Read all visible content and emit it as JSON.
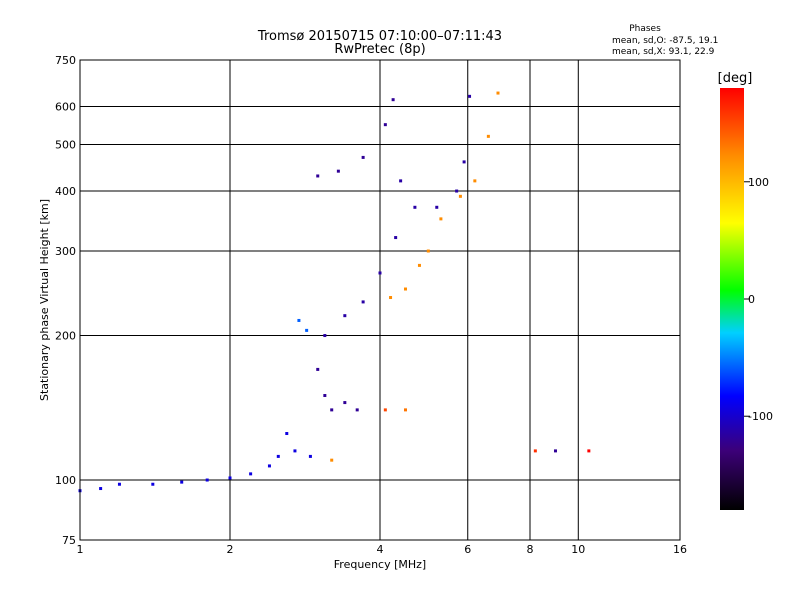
{
  "title_line1": "Tromsø 20150715 07:10:00–07:11:43",
  "title_line2": "RwPretec (8p)",
  "stats": {
    "header": "Phases",
    "line_o": "mean, sd,O:  -87.5, 19.1",
    "line_x": "mean, sd,X:  93.1, 22.9"
  },
  "chart_data": {
    "type": "scatter",
    "xlabel": "Frequency [MHz]",
    "ylabel": "Stationary phase Virtual Height [km]",
    "x_scale": "log",
    "y_scale": "log",
    "xlim": [
      1,
      16
    ],
    "ylim": [
      75,
      750
    ],
    "x_ticks": [
      1,
      2,
      4,
      6,
      8,
      10,
      16
    ],
    "x_tick_labels": [
      "1",
      "2",
      "4",
      "6",
      "8",
      "10",
      "16"
    ],
    "y_ticks": [
      75,
      100,
      200,
      300,
      400,
      500,
      600,
      750
    ],
    "y_tick_labels": [
      "75",
      "100",
      "200",
      "300",
      "400",
      "500",
      "600",
      "750"
    ],
    "grid": true,
    "colorbar": {
      "label": "[deg]",
      "range": [
        -180,
        180
      ],
      "ticks": [
        100,
        0,
        -100
      ],
      "tick_labels": [
        "100",
        "0",
        "-100"
      ]
    },
    "series": [
      {
        "values": [
          [
            1.0,
            95,
            -95
          ],
          [
            1.1,
            96,
            -95
          ],
          [
            1.2,
            98,
            -95
          ],
          [
            1.4,
            98,
            -95
          ],
          [
            1.6,
            99,
            -95
          ],
          [
            1.8,
            100,
            -95
          ],
          [
            2.0,
            101,
            -95
          ],
          [
            2.2,
            103,
            -95
          ],
          [
            2.4,
            107,
            -95
          ],
          [
            2.5,
            112,
            -95
          ],
          [
            2.6,
            125,
            -95
          ],
          [
            2.7,
            115,
            -95
          ],
          [
            2.9,
            112,
            -95
          ]
        ]
      },
      {
        "values": [
          [
            2.75,
            215,
            -60
          ],
          [
            2.85,
            205,
            -60
          ],
          [
            3.0,
            170,
            -120
          ],
          [
            3.1,
            150,
            -120
          ],
          [
            3.2,
            140,
            -120
          ],
          [
            3.4,
            145,
            -120
          ],
          [
            3.6,
            140,
            -120
          ]
        ]
      },
      {
        "values": [
          [
            3.1,
            200,
            -115
          ],
          [
            3.4,
            220,
            -115
          ],
          [
            3.7,
            235,
            -115
          ],
          [
            4.0,
            270,
            -115
          ],
          [
            4.3,
            320,
            -115
          ],
          [
            4.4,
            420,
            -115
          ],
          [
            4.7,
            370,
            -115
          ],
          [
            5.2,
            370,
            -115
          ],
          [
            5.7,
            400,
            -115
          ],
          [
            5.9,
            460,
            -115
          ],
          [
            6.05,
            630,
            -115
          ]
        ]
      },
      {
        "values": [
          [
            3.0,
            430,
            -120
          ],
          [
            3.3,
            440,
            -120
          ],
          [
            3.7,
            470,
            -120
          ],
          [
            4.1,
            550,
            -120
          ],
          [
            4.25,
            620,
            -120
          ]
        ]
      },
      {
        "values": [
          [
            4.2,
            240,
            120
          ],
          [
            4.5,
            250,
            120
          ],
          [
            4.8,
            280,
            120
          ],
          [
            5.0,
            300,
            120
          ],
          [
            5.3,
            350,
            120
          ],
          [
            5.8,
            390,
            120
          ],
          [
            6.2,
            420,
            120
          ],
          [
            6.6,
            520,
            120
          ],
          [
            6.9,
            640,
            120
          ]
        ]
      },
      {
        "values": [
          [
            3.2,
            110,
            120
          ],
          [
            4.1,
            140,
            150
          ],
          [
            4.5,
            140,
            130
          ],
          [
            8.2,
            115,
            160
          ],
          [
            9.0,
            115,
            -120
          ],
          [
            10.5,
            115,
            180
          ]
        ]
      }
    ]
  }
}
